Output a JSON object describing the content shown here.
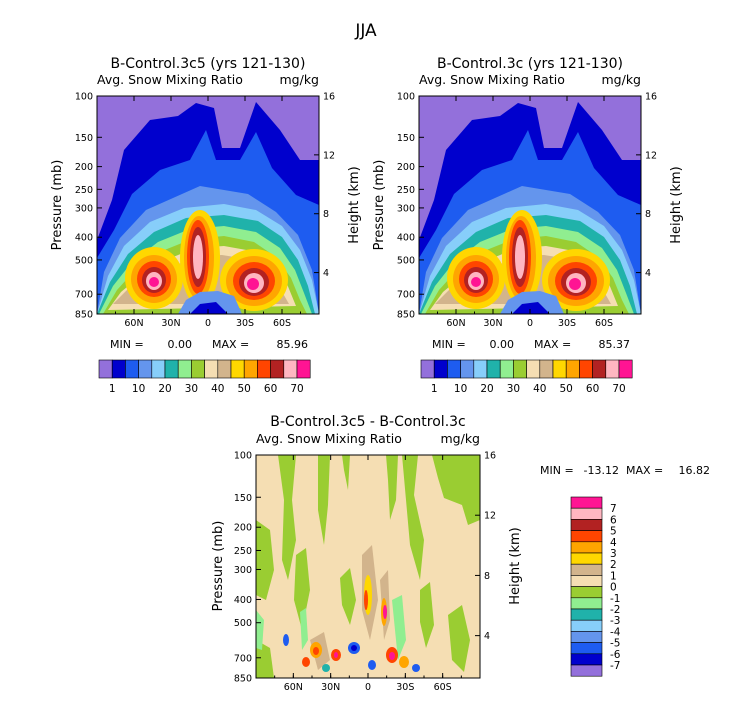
{
  "figure_title": "JJA",
  "chart_data": [
    {
      "type": "contour",
      "title": "B-Control.3c5 (yrs 121-130)",
      "variable": "Avg. Snow Mixing Ratio",
      "units": "mg/kg",
      "ylabel_left": "Pressure (mb)",
      "ylabel_right": "Height (km)",
      "pressure_ticks": [
        "100",
        "150",
        "200",
        "250",
        "300",
        "400",
        "500",
        "700",
        "850"
      ],
      "height_ticks": [
        "16",
        "12",
        "8",
        "4"
      ],
      "lat_ticks": [
        "60N",
        "30N",
        "0",
        "30S",
        "60S"
      ],
      "min_label": "MIN =",
      "min": "0.00",
      "max_label": "MAX =",
      "max": "85.96",
      "colorbar_ticks": [
        "1",
        "10",
        "20",
        "30",
        "40",
        "50",
        "60",
        "70"
      ]
    },
    {
      "type": "contour",
      "title": "B-Control.3c (yrs 121-130)",
      "variable": "Avg. Snow Mixing Ratio",
      "units": "mg/kg",
      "ylabel_left": "Pressure (mb)",
      "ylabel_right": "Height (km)",
      "pressure_ticks": [
        "100",
        "150",
        "200",
        "250",
        "300",
        "400",
        "500",
        "700",
        "850"
      ],
      "height_ticks": [
        "16",
        "12",
        "8",
        "4"
      ],
      "lat_ticks": [
        "60N",
        "30N",
        "0",
        "30S",
        "60S"
      ],
      "min_label": "MIN =",
      "min": "0.00",
      "max_label": "MAX =",
      "max": "85.37",
      "colorbar_ticks": [
        "1",
        "10",
        "20",
        "30",
        "40",
        "50",
        "60",
        "70"
      ]
    },
    {
      "type": "contour",
      "title": "B-Control.3c5 - B-Control.3c",
      "variable": "Avg. Snow Mixing Ratio",
      "units": "mg/kg",
      "ylabel_left": "Pressure (mb)",
      "ylabel_right": "Height (km)",
      "pressure_ticks": [
        "100",
        "150",
        "200",
        "250",
        "300",
        "400",
        "500",
        "700",
        "850"
      ],
      "height_ticks": [
        "16",
        "12",
        "8",
        "4"
      ],
      "lat_ticks": [
        "60N",
        "30N",
        "0",
        "30S",
        "60S"
      ],
      "min_label": "MIN =",
      "min": "-13.12",
      "max_label": "MAX =",
      "max": "16.82",
      "colorbar_ticks": [
        "7",
        "6",
        "5",
        "4",
        "3",
        "2",
        "1",
        "0",
        "-1",
        "-2",
        "-3",
        "-4",
        "-5",
        "-6",
        "-7"
      ]
    }
  ],
  "colors": {
    "abs_scale": [
      "#9370db",
      "#0000cd",
      "#1e5cf0",
      "#6495ed",
      "#87cefa",
      "#20b2aa",
      "#90ee90",
      "#9acd32",
      "#f5deb3",
      "#d2b48c",
      "#ffd700",
      "#ffa500",
      "#ff4500",
      "#b22222",
      "#ffb6c1",
      "#ff1493"
    ],
    "diff_scale": [
      "#ff1493",
      "#ffb6c1",
      "#b22222",
      "#ff4500",
      "#ffa500",
      "#ffd700",
      "#d2b48c",
      "#f5deb3",
      "#9acd32",
      "#90ee90",
      "#20b2aa",
      "#87cefa",
      "#6495ed",
      "#1e5cf0",
      "#0000cd",
      "#9370db"
    ]
  }
}
